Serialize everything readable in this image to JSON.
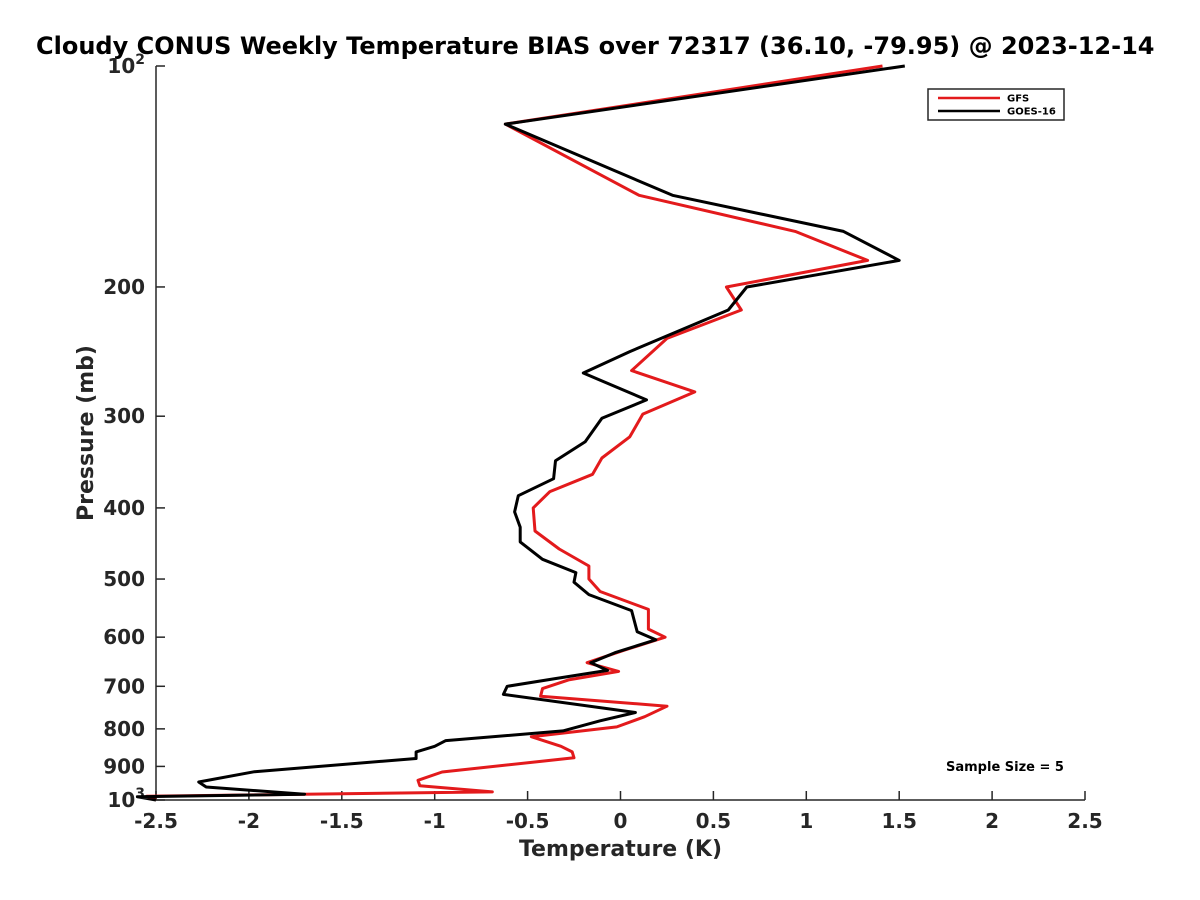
{
  "chart_data": {
    "type": "line",
    "title": "Cloudy CONUS Weekly Temperature BIAS over 72317 (36.10, -79.95) @ 2023-12-14",
    "xlabel": "Temperature (K)",
    "ylabel": "Pressure (mb)",
    "xlim": [
      -2.5,
      2.5
    ],
    "ylim": [
      1000,
      100
    ],
    "y_scale": "log",
    "grid": false,
    "legend_position": "top-right",
    "x_ticks": [
      -2.5,
      -2,
      -1.5,
      -1,
      -0.5,
      0,
      0.5,
      1,
      1.5,
      2,
      2.5
    ],
    "x_tick_labels": [
      "-2.5",
      "-2",
      "-1.5",
      "-1",
      "-0.5",
      "0",
      "0.5",
      "1",
      "1.5",
      "2",
      "2.5"
    ],
    "y_ticks": [
      100,
      200,
      300,
      400,
      500,
      600,
      700,
      800,
      900,
      1000
    ],
    "y_tick_labels": [
      {
        "base": "10",
        "exp": "2"
      },
      {
        "base": "200",
        "exp": ""
      },
      {
        "base": "300",
        "exp": ""
      },
      {
        "base": "400",
        "exp": ""
      },
      {
        "base": "500",
        "exp": ""
      },
      {
        "base": "600",
        "exp": ""
      },
      {
        "base": "700",
        "exp": ""
      },
      {
        "base": "800",
        "exp": ""
      },
      {
        "base": "900",
        "exp": ""
      },
      {
        "base": "10",
        "exp": "3"
      }
    ],
    "annotation": "Sample Size = 5",
    "series": [
      {
        "name": "GFS",
        "color": "#e31a1c",
        "points": [
          [
            1.41,
            100
          ],
          [
            -0.62,
            120
          ],
          [
            0.1,
            150
          ],
          [
            0.94,
            168
          ],
          [
            1.33,
            184
          ],
          [
            0.57,
            200
          ],
          [
            0.65,
            215
          ],
          [
            0.25,
            235
          ],
          [
            0.06,
            260
          ],
          [
            0.4,
            278
          ],
          [
            0.12,
            298
          ],
          [
            0.05,
            320
          ],
          [
            -0.1,
            342
          ],
          [
            -0.15,
            360
          ],
          [
            -0.38,
            380
          ],
          [
            -0.47,
            400
          ],
          [
            -0.46,
            430
          ],
          [
            -0.33,
            455
          ],
          [
            -0.17,
            480
          ],
          [
            -0.17,
            500
          ],
          [
            -0.11,
            520
          ],
          [
            0.15,
            550
          ],
          [
            0.15,
            585
          ],
          [
            0.24,
            600
          ],
          [
            0.02,
            625
          ],
          [
            -0.18,
            650
          ],
          [
            -0.01,
            668
          ],
          [
            -0.28,
            686
          ],
          [
            -0.42,
            705
          ],
          [
            -0.43,
            722
          ],
          [
            0.25,
            745
          ],
          [
            0.13,
            770
          ],
          [
            -0.02,
            795
          ],
          [
            -0.48,
            820
          ],
          [
            -0.32,
            845
          ],
          [
            -0.26,
            860
          ],
          [
            -0.25,
            876
          ],
          [
            -0.96,
            916
          ],
          [
            -1.09,
            940
          ],
          [
            -1.08,
            956
          ],
          [
            -0.69,
            975
          ],
          [
            -2.55,
            988
          ],
          [
            -2.5,
            1000
          ]
        ]
      },
      {
        "name": "GOES-16",
        "color": "#000000",
        "points": [
          [
            1.53,
            100
          ],
          [
            -0.62,
            120
          ],
          [
            0.28,
            150
          ],
          [
            1.2,
            168
          ],
          [
            1.5,
            184
          ],
          [
            0.68,
            200
          ],
          [
            0.58,
            215
          ],
          [
            0.05,
            245
          ],
          [
            -0.2,
            262
          ],
          [
            0.14,
            285
          ],
          [
            -0.1,
            302
          ],
          [
            -0.19,
            325
          ],
          [
            -0.35,
            345
          ],
          [
            -0.36,
            365
          ],
          [
            -0.55,
            385
          ],
          [
            -0.57,
            405
          ],
          [
            -0.54,
            425
          ],
          [
            -0.54,
            445
          ],
          [
            -0.42,
            470
          ],
          [
            -0.24,
            490
          ],
          [
            -0.25,
            505
          ],
          [
            -0.17,
            525
          ],
          [
            0.06,
            552
          ],
          [
            0.09,
            590
          ],
          [
            0.19,
            605
          ],
          [
            -0.03,
            630
          ],
          [
            -0.16,
            650
          ],
          [
            -0.07,
            666
          ],
          [
            -0.36,
            684
          ],
          [
            -0.61,
            700
          ],
          [
            -0.63,
            718
          ],
          [
            0.08,
            760
          ],
          [
            -0.11,
            780
          ],
          [
            -0.31,
            805
          ],
          [
            -0.94,
            830
          ],
          [
            -1.0,
            845
          ],
          [
            -1.1,
            860
          ],
          [
            -1.1,
            878
          ],
          [
            -1.97,
            915
          ],
          [
            -2.27,
            945
          ],
          [
            -2.23,
            960
          ],
          [
            -1.7,
            982
          ],
          [
            -2.6,
            990
          ],
          [
            -2.5,
            1000
          ]
        ]
      }
    ]
  }
}
